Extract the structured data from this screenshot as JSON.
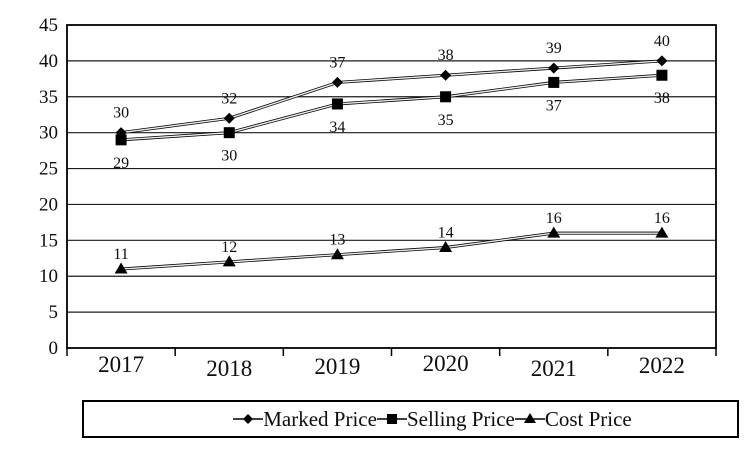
{
  "chart_data": {
    "type": "line",
    "title": "",
    "xlabel": "",
    "ylabel": "",
    "categories": [
      "2017",
      "2018",
      "2019",
      "2020",
      "2021",
      "2022"
    ],
    "series": [
      {
        "name": "Marked Price",
        "marker": "diamond",
        "label_position": "above",
        "values": [
          30,
          32,
          37,
          38,
          39,
          40
        ]
      },
      {
        "name": "Selling Price",
        "marker": "square",
        "label_position": "below",
        "values": [
          29,
          30,
          34,
          35,
          37,
          38
        ]
      },
      {
        "name": "Cost Price",
        "marker": "triangle",
        "label_position": "above",
        "values": [
          11,
          12,
          13,
          14,
          16,
          16
        ]
      }
    ],
    "ylim": [
      0,
      45
    ],
    "ytick_step": 5,
    "yticks": [
      "0",
      "5",
      "10",
      "15",
      "20",
      "25",
      "30",
      "35",
      "40",
      "45"
    ],
    "grid": true,
    "legend_position": "bottom",
    "colors": {
      "line_edge": "#000000",
      "line_core": "#ededed",
      "marker": "#000000",
      "grid": "#1c1c1c",
      "frame": "#000000",
      "text": "#0d0d12",
      "background": "#ffffff"
    }
  }
}
